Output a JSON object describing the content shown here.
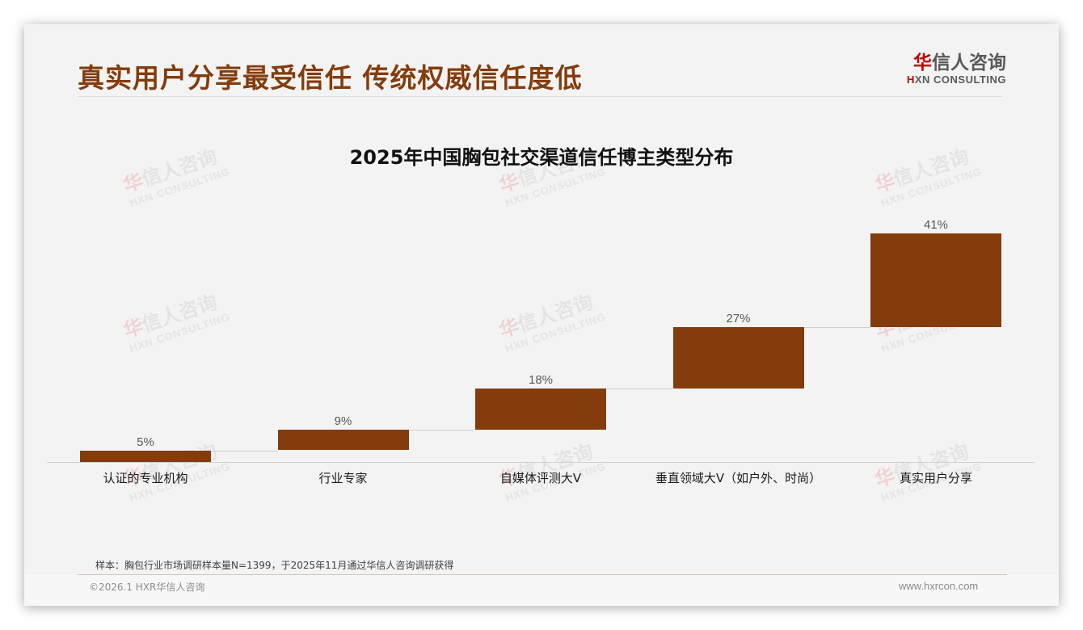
{
  "header": {
    "title": "真实用户分享最受信任 传统权威信任度低",
    "logo_cn_first": "华",
    "logo_cn_rest": "信人咨询",
    "logo_en_first": "H",
    "logo_en_rest": "XN CONSULTING"
  },
  "watermark": {
    "cn_first": "华",
    "cn_rest": "信人咨询",
    "en": "HXN CONSULTING"
  },
  "chart_data": {
    "type": "bar",
    "subtype": "waterfall",
    "title": "2025年中国胸包社交渠道信任博主类型分布",
    "categories": [
      "认证的专业机构",
      "行业专家",
      "自媒体评测大V",
      "垂直领域大V（如户外、时尚）",
      "真实用户分享"
    ],
    "values": [
      5,
      9,
      18,
      27,
      41
    ],
    "value_labels": [
      "5%",
      "9%",
      "18%",
      "27%",
      "41%"
    ],
    "unit": "%",
    "xlabel": "",
    "ylabel": "",
    "ylim": [
      0,
      100
    ],
    "grid": false,
    "legend": null,
    "bar_color": "#843c0c",
    "connector_color": "#d0d0d0"
  },
  "footer": {
    "source_note": "样本：胸包行业市场调研样本量N=1399，于2025年11月通过华信人咨询调研获得",
    "copyright": "©2026.1 HXR华信人咨询",
    "website": "www.hxrcon.com"
  },
  "colors": {
    "accent": "#843c0c",
    "logo_red": "#c00000",
    "background": "#f3f3f3"
  }
}
